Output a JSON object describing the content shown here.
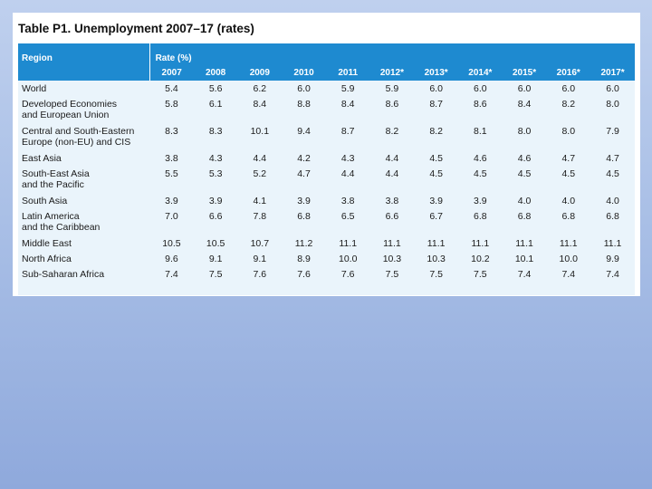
{
  "title": "Table P1. Unemployment 2007–17 (rates)",
  "header": {
    "region_label": "Region",
    "rate_label": "Rate (%)",
    "years": [
      "2007",
      "2008",
      "2009",
      "2010",
      "2011",
      "2012*",
      "2013*",
      "2014*",
      "2015*",
      "2016*",
      "2017*"
    ]
  },
  "rows": [
    {
      "region": [
        "World"
      ],
      "values": [
        "5.4",
        "5.6",
        "6.2",
        "6.0",
        "5.9",
        "5.9",
        "6.0",
        "6.0",
        "6.0",
        "6.0",
        "6.0"
      ]
    },
    {
      "region": [
        "Developed Economies",
        "and European Union"
      ],
      "values": [
        "5.8",
        "6.1",
        "8.4",
        "8.8",
        "8.4",
        "8.6",
        "8.7",
        "8.6",
        "8.4",
        "8.2",
        "8.0"
      ]
    },
    {
      "region": [
        "Central and South-Eastern",
        "Europe (non-EU) and CIS"
      ],
      "values": [
        "8.3",
        "8.3",
        "10.1",
        "9.4",
        "8.7",
        "8.2",
        "8.2",
        "8.1",
        "8.0",
        "8.0",
        "7.9"
      ]
    },
    {
      "region": [
        "East Asia"
      ],
      "values": [
        "3.8",
        "4.3",
        "4.4",
        "4.2",
        "4.3",
        "4.4",
        "4.5",
        "4.6",
        "4.6",
        "4.7",
        "4.7"
      ]
    },
    {
      "region": [
        "South-East Asia",
        "and the Pacific"
      ],
      "values": [
        "5.5",
        "5.3",
        "5.2",
        "4.7",
        "4.4",
        "4.4",
        "4.5",
        "4.5",
        "4.5",
        "4.5",
        "4.5"
      ]
    },
    {
      "region": [
        "South Asia"
      ],
      "values": [
        "3.9",
        "3.9",
        "4.1",
        "3.9",
        "3.8",
        "3.8",
        "3.9",
        "3.9",
        "4.0",
        "4.0",
        "4.0"
      ]
    },
    {
      "region": [
        "Latin America",
        "and the Caribbean"
      ],
      "values": [
        "7.0",
        "6.6",
        "7.8",
        "6.8",
        "6.5",
        "6.6",
        "6.7",
        "6.8",
        "6.8",
        "6.8",
        "6.8"
      ]
    },
    {
      "region": [
        "Middle East"
      ],
      "values": [
        "10.5",
        "10.5",
        "10.7",
        "11.2",
        "11.1",
        "11.1",
        "11.1",
        "11.1",
        "11.1",
        "11.1",
        "11.1"
      ]
    },
    {
      "region": [
        "North Africa"
      ],
      "values": [
        "9.6",
        "9.1",
        "9.1",
        "8.9",
        "10.0",
        "10.3",
        "10.3",
        "10.2",
        "10.1",
        "10.0",
        "9.9"
      ]
    },
    {
      "region": [
        "Sub-Saharan Africa"
      ],
      "values": [
        "7.4",
        "7.5",
        "7.6",
        "7.6",
        "7.6",
        "7.5",
        "7.5",
        "7.5",
        "7.4",
        "7.4",
        "7.4"
      ]
    }
  ]
}
